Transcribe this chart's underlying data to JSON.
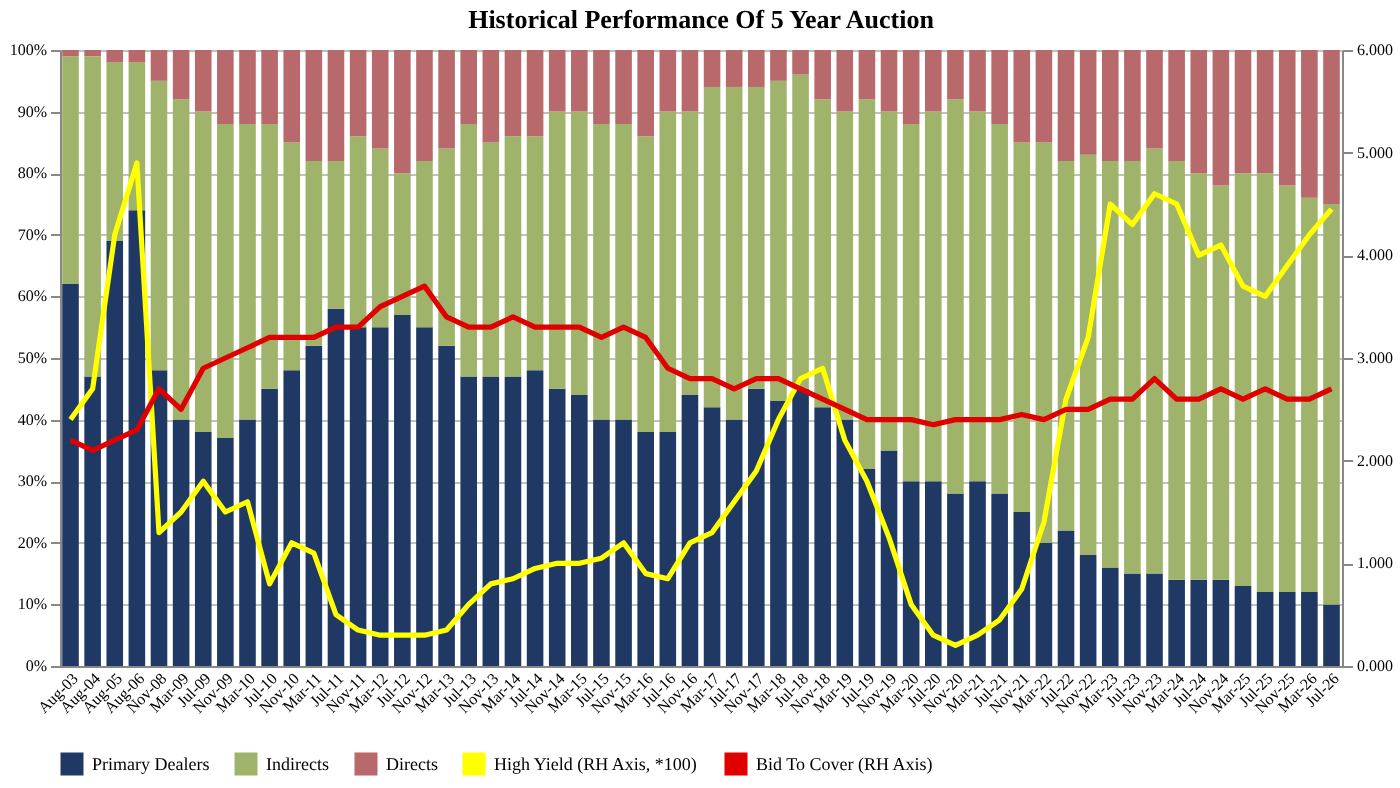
{
  "chart_data": {
    "type": "bar",
    "title": "Historical Performance Of 5 Year Auction",
    "stacked": true,
    "grid": "y",
    "legend": "bottom",
    "categories": [
      "Aug-03",
      "Aug-04",
      "Aug-05",
      "Aug-06",
      "Nov-08",
      "Mar-09",
      "Jul-09",
      "Nov-09",
      "Mar-10",
      "Jul-10",
      "Nov-10",
      "Mar-11",
      "Jul-11",
      "Nov-11",
      "Mar-12",
      "Jul-12",
      "Nov-12",
      "Mar-13",
      "Jul-13",
      "Nov-13",
      "Mar-14",
      "Jul-14",
      "Nov-14",
      "Mar-15",
      "Jul-15",
      "Nov-15",
      "Mar-16",
      "Jul-16",
      "Nov-16",
      "Mar-17",
      "Jul-17",
      "Nov-17",
      "Mar-18",
      "Jul-18",
      "Nov-18",
      "Mar-19",
      "Jul-19",
      "Nov-19",
      "Mar-20",
      "Jul-20",
      "Nov-20",
      "Mar-21",
      "Jul-21",
      "Nov-21",
      "Mar-22",
      "Jul-22",
      "Nov-22",
      "Mar-23",
      "Jul-23",
      "Nov-23",
      "Mar-24",
      "Jul-24",
      "Nov-24",
      "Mar-25",
      "Jul-25",
      "Nov-25",
      "Mar-26",
      "Jul-26"
    ],
    "ylim": [
      0,
      100
    ],
    "yticks": [
      {
        "value": 0,
        "label": "0%"
      },
      {
        "value": 10,
        "label": "10%"
      },
      {
        "value": 20,
        "label": "20%"
      },
      {
        "value": 30,
        "label": "30%"
      },
      {
        "value": 40,
        "label": "40%"
      },
      {
        "value": 50,
        "label": "50%"
      },
      {
        "value": 60,
        "label": "60%"
      },
      {
        "value": 70,
        "label": "70%"
      },
      {
        "value": 80,
        "label": "80%"
      },
      {
        "value": 90,
        "label": "90%"
      },
      {
        "value": 100,
        "label": "100%"
      }
    ],
    "y2lim": [
      0,
      6
    ],
    "y2ticks": [
      {
        "value": 0,
        "label": "0.000"
      },
      {
        "value": 1,
        "label": "1.000"
      },
      {
        "value": 2,
        "label": "2.000"
      },
      {
        "value": 3,
        "label": "3.000"
      },
      {
        "value": 4,
        "label": "4.000"
      },
      {
        "value": 5,
        "label": "5.000"
      },
      {
        "value": 6,
        "label": "6.000"
      }
    ],
    "series": [
      {
        "name": "Primary Dealers",
        "color": "#1f3864",
        "values": [
          62,
          47,
          69,
          74,
          48,
          40,
          38,
          37,
          40,
          45,
          48,
          52,
          58,
          55,
          55,
          57,
          55,
          52,
          47,
          47,
          47,
          48,
          45,
          44,
          40,
          40,
          38,
          38,
          44,
          42,
          40,
          45,
          43,
          45,
          42,
          40,
          32,
          35,
          30,
          30,
          28,
          30,
          28,
          25,
          20,
          22,
          18,
          16,
          15,
          15,
          14,
          14,
          14,
          13,
          12,
          12,
          12,
          10
        ]
      },
      {
        "name": "Indirects",
        "color": "#9fb36a",
        "values": [
          37,
          52,
          29,
          24,
          47,
          52,
          52,
          51,
          48,
          43,
          37,
          30,
          24,
          31,
          29,
          23,
          27,
          32,
          41,
          38,
          39,
          38,
          45,
          46,
          48,
          48,
          48,
          52,
          46,
          52,
          54,
          49,
          52,
          51,
          50,
          50,
          60,
          55,
          58,
          60,
          64,
          60,
          60,
          60,
          65,
          60,
          65,
          66,
          67,
          69,
          68,
          66,
          64,
          67,
          68,
          66,
          64,
          65
        ]
      },
      {
        "name": "Directs",
        "color": "#b8696b",
        "values": [
          1,
          1,
          2,
          2,
          5,
          8,
          10,
          12,
          12,
          12,
          15,
          18,
          18,
          14,
          16,
          20,
          18,
          16,
          12,
          15,
          14,
          14,
          10,
          10,
          12,
          12,
          14,
          10,
          10,
          6,
          6,
          6,
          5,
          4,
          8,
          10,
          8,
          10,
          12,
          10,
          8,
          10,
          12,
          15,
          15,
          18,
          17,
          18,
          18,
          16,
          18,
          20,
          22,
          20,
          20,
          22,
          24,
          25
        ]
      },
      {
        "name": "High Yield (RH Axis, *100)",
        "type": "line",
        "axis": "y2",
        "color": "#ffff00",
        "values": [
          2.4,
          2.7,
          4.2,
          4.9,
          1.3,
          1.5,
          1.8,
          1.5,
          1.6,
          0.8,
          1.2,
          1.1,
          0.5,
          0.35,
          0.3,
          0.3,
          0.3,
          0.35,
          0.6,
          0.8,
          0.85,
          0.95,
          1.0,
          1.0,
          1.05,
          1.2,
          0.9,
          0.85,
          1.2,
          1.3,
          1.6,
          1.9,
          2.4,
          2.8,
          2.9,
          2.2,
          1.8,
          1.25,
          0.6,
          0.3,
          0.2,
          0.3,
          0.45,
          0.75,
          1.4,
          2.6,
          3.2,
          4.5,
          4.3,
          4.6,
          4.5,
          4.0,
          4.1,
          3.7,
          3.6,
          3.9,
          4.2,
          4.45
        ]
      },
      {
        "name": "Bid To Cover (RH Axis)",
        "type": "line",
        "axis": "y2",
        "color": "#e00000",
        "values": [
          2.2,
          2.1,
          2.2,
          2.3,
          2.7,
          2.5,
          2.9,
          3.0,
          3.1,
          3.2,
          3.2,
          3.2,
          3.3,
          3.3,
          3.5,
          3.6,
          3.7,
          3.4,
          3.3,
          3.3,
          3.4,
          3.3,
          3.3,
          3.3,
          3.2,
          3.3,
          3.2,
          2.9,
          2.8,
          2.8,
          2.7,
          2.8,
          2.8,
          2.7,
          2.6,
          2.5,
          2.4,
          2.4,
          2.4,
          2.35,
          2.4,
          2.4,
          2.4,
          2.45,
          2.4,
          2.5,
          2.5,
          2.6,
          2.6,
          2.8,
          2.6,
          2.6,
          2.7,
          2.6,
          2.7,
          2.6,
          2.6,
          2.7
        ]
      }
    ]
  }
}
